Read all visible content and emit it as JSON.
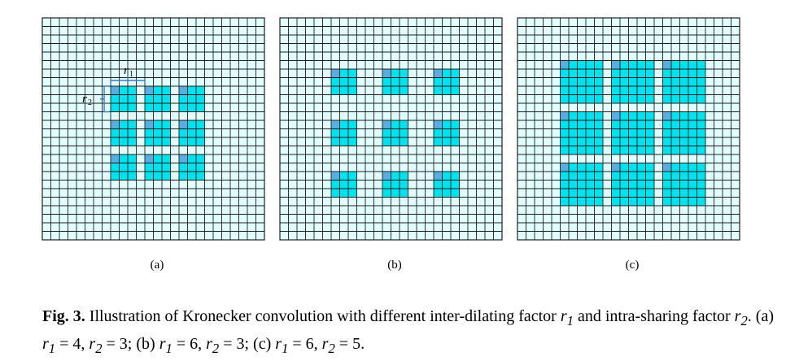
{
  "figure": {
    "colors": {
      "grid_bg": "#e1ffff",
      "grid_line": "#1e1e1e",
      "cell_fill": "#00e3ee",
      "corner_cell": "#58aee0",
      "bracket": "#3a78c8"
    },
    "grid_size": 26,
    "panels": [
      {
        "label": "(a)",
        "r1": 4,
        "r2": 3,
        "annotate": true,
        "r1_label": "r",
        "r1_sub": "1",
        "r2_label": "r",
        "r2_sub": "2"
      },
      {
        "label": "(b)",
        "r1": 6,
        "r2": 3,
        "annotate": false
      },
      {
        "label": "(c)",
        "r1": 6,
        "r2": 5,
        "annotate": false
      }
    ]
  },
  "caption": {
    "fig_num": "Fig. 3.",
    "text_1": " Illustration of Kronecker convolution with different inter-dilating factor ",
    "sym_r1": "r",
    "text_2": " and intra-sharing factor ",
    "text_3": ". (a) ",
    "eq_a": " = 4, ",
    "eq_a2": " = 3; (b) ",
    "eq_b": " = 6, ",
    "eq_b2": " = 3; (c) ",
    "eq_c": " = 6, ",
    "eq_c2": " = 5."
  }
}
